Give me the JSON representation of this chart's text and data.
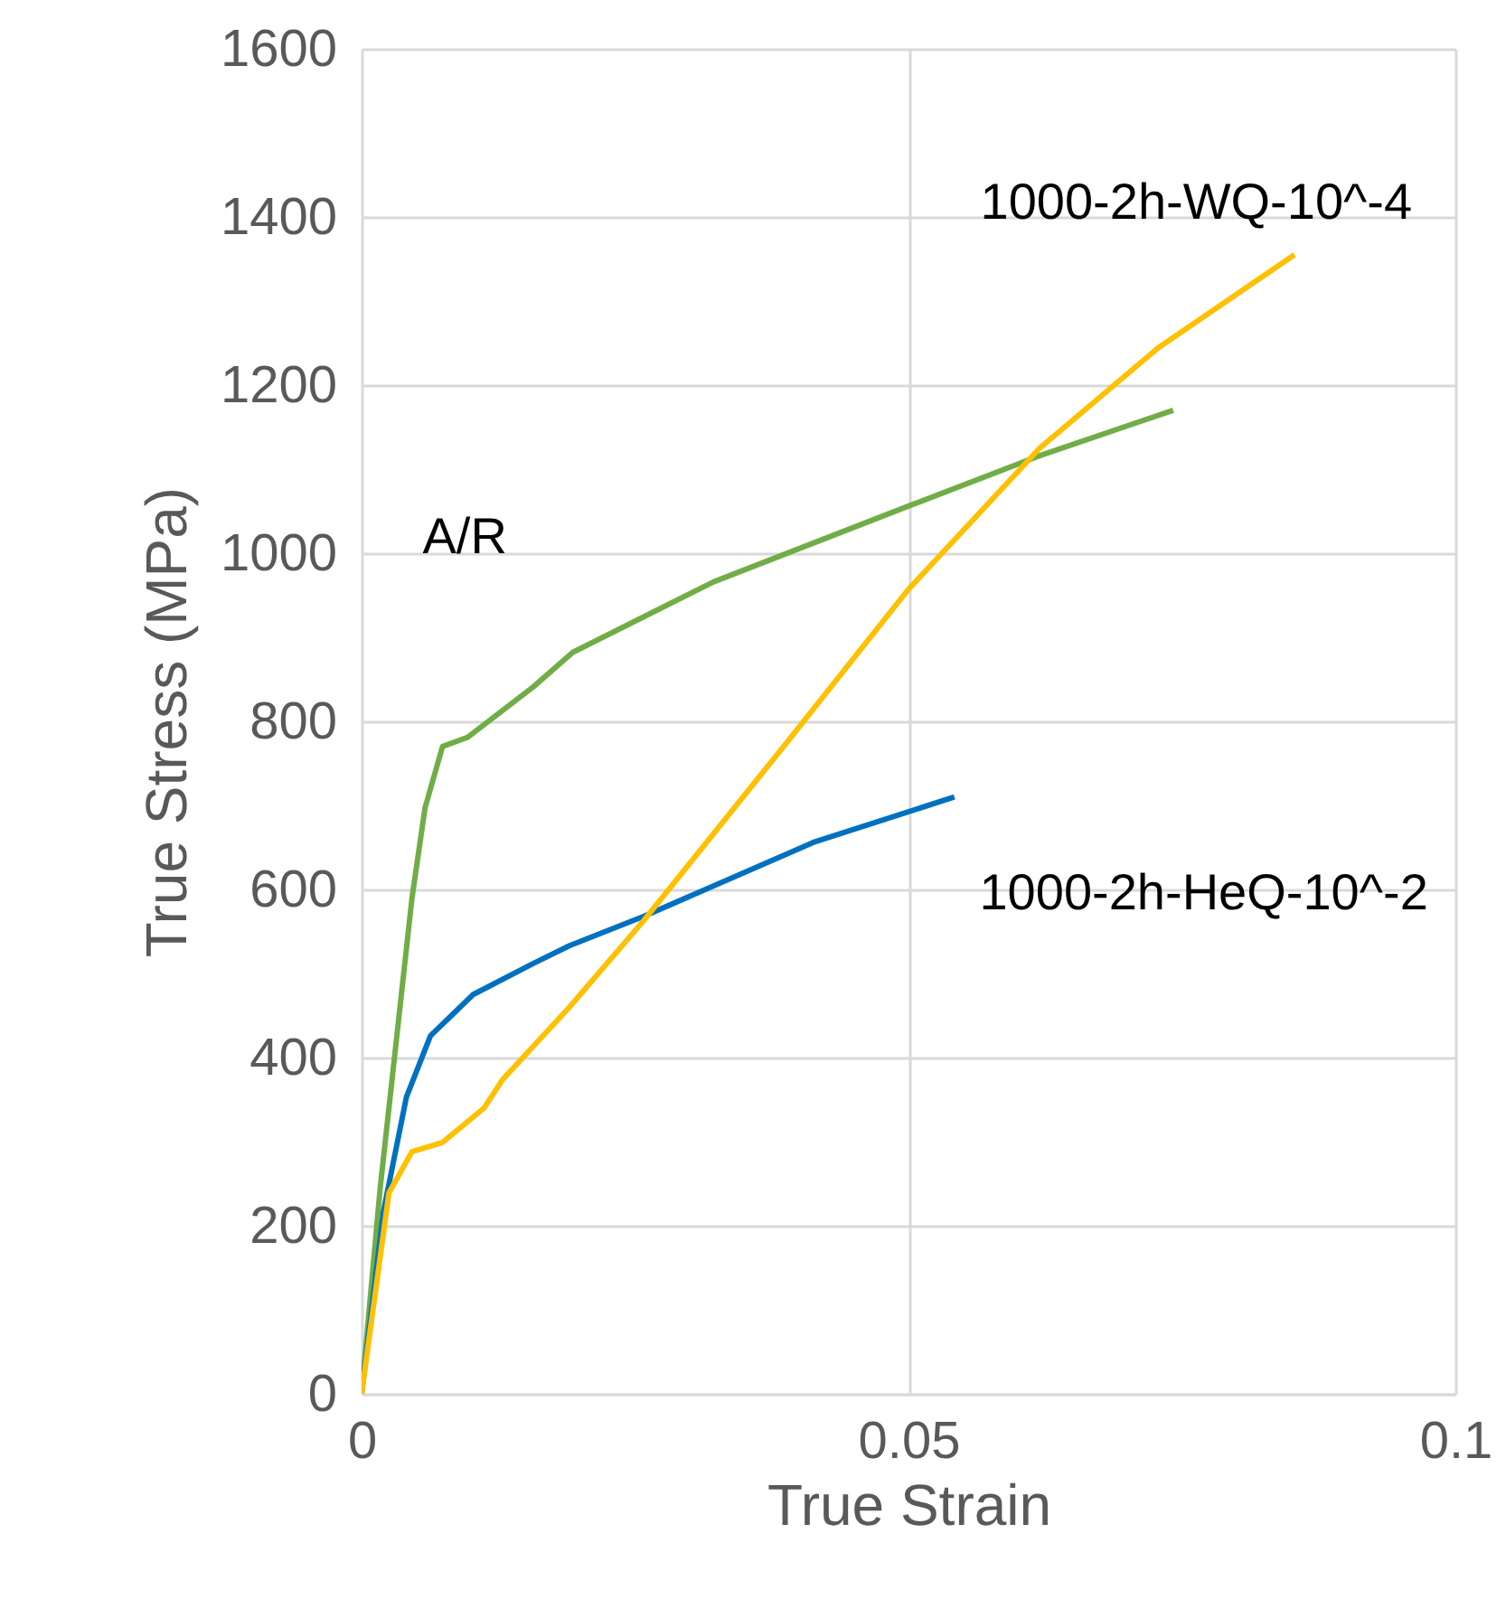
{
  "chart_data": {
    "type": "line",
    "xlabel": "True Strain",
    "ylabel": "True Stress (MPa)",
    "xlim": [
      0,
      0.1
    ],
    "xticks": [
      0,
      0.05,
      0.1
    ],
    "ylim": [
      0,
      1600
    ],
    "yticks": [
      0,
      200,
      400,
      600,
      800,
      1000,
      1200,
      1400,
      1600
    ],
    "grid": true,
    "legend": false,
    "marker": "none",
    "line_style": "solid",
    "series": [
      {
        "name": "A/R",
        "color": "#70ad47",
        "x": [
          0,
          0.0017,
          0.0046,
          0.0058,
          0.0074,
          0.0097,
          0.0157,
          0.0193,
          0.0322,
          0.05,
          0.062,
          0.0742
        ],
        "values": [
          0,
          245,
          589,
          697,
          770,
          781,
          841,
          882,
          966,
          1056,
          1116,
          1170
        ]
      },
      {
        "name": "1000-2h-HeQ-10^-2",
        "color": "#0070c0",
        "x": [
          0,
          0.002,
          0.0041,
          0.0063,
          0.0102,
          0.0157,
          0.019,
          0.0258,
          0.0413,
          0.0542
        ],
        "values": [
          0,
          217,
          353,
          426,
          475,
          512,
          533,
          568,
          656,
          710
        ]
      },
      {
        "name": "1000-2h-WQ-10^-4",
        "color": "#ffc000",
        "x": [
          0,
          0.0025,
          0.0046,
          0.0074,
          0.0112,
          0.0129,
          0.019,
          0.0258,
          0.0387,
          0.05,
          0.062,
          0.0729,
          0.0853
        ],
        "values": [
          0,
          239,
          288,
          299,
          340,
          374,
          460,
          563,
          772,
          957,
          1125,
          1245,
          1355
        ]
      }
    ]
  }
}
